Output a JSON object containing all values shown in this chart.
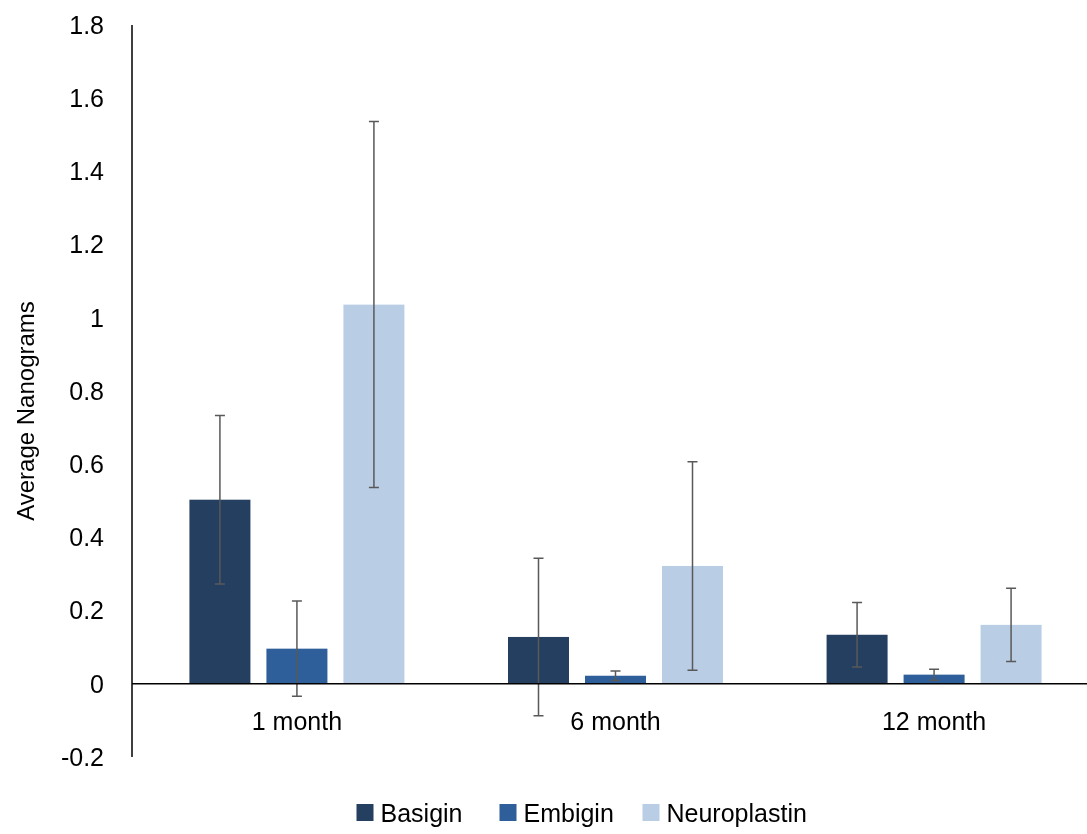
{
  "chart_data": {
    "type": "bar",
    "ylabel": "Average Nanograms",
    "categories": [
      "1 month",
      "6 month",
      "12 month"
    ],
    "series": [
      {
        "name": "Basigin",
        "color": "#243f60",
        "values": [
          0.503,
          0.128,
          0.134
        ],
        "errors": [
          0.23,
          0.215,
          0.088
        ]
      },
      {
        "name": "Embigin",
        "color": "#2e5f9a",
        "values": [
          0.096,
          0.022,
          0.025
        ],
        "errors": [
          0.13,
          0.013,
          0.015
        ]
      },
      {
        "name": "Neuroplastin",
        "color": "#b9cde5",
        "values": [
          1.036,
          0.322,
          0.161
        ],
        "errors": [
          0.5,
          0.285,
          0.1
        ]
      }
    ],
    "ylim": [
      -0.2,
      1.8
    ],
    "yticks": [
      -0.2,
      0,
      0.2,
      0.4,
      0.6,
      0.8,
      1,
      1.2,
      1.4,
      1.6,
      1.8
    ],
    "grid": false,
    "legend": "bottom"
  }
}
